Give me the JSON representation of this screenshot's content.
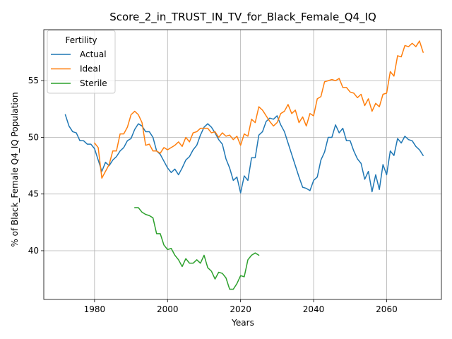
{
  "chart_data": {
    "type": "line",
    "title": "Score_2_in_TRUST_IN_TV_for_Black_Female_Q4_IQ",
    "xlabel": "Years",
    "ylabel": "% of Black_Female Q4_IQ Population",
    "xlim": [
      1966.1,
      2075.0
    ],
    "ylim": [
      35.7,
      59.5
    ],
    "x_ticks": [
      1980,
      2000,
      2020,
      2040,
      2060
    ],
    "y_ticks": [
      40,
      45,
      50,
      55
    ],
    "grid": true,
    "legend": {
      "title": "Fertility",
      "placement": "upper-left"
    },
    "series": [
      {
        "name": "Actual",
        "color": "#1f77b4",
        "x": [
          1972,
          1973,
          1974,
          1975,
          1976,
          1977,
          1978,
          1979,
          1980,
          1981,
          1982,
          1983,
          1984,
          1985,
          1986,
          1987,
          1988,
          1989,
          1990,
          1991,
          1992,
          1993,
          1994,
          1995,
          1996,
          1997,
          1998,
          1999,
          2000,
          2001,
          2002,
          2003,
          2004,
          2005,
          2006,
          2007,
          2008,
          2009,
          2010,
          2011,
          2012,
          2013,
          2014,
          2015,
          2016,
          2017,
          2018,
          2019,
          2020,
          2021,
          2022,
          2023,
          2024,
          2025,
          2026,
          2027,
          2028,
          2029,
          2030,
          2031,
          2032,
          2033,
          2034,
          2035,
          2036,
          2037,
          2038,
          2039,
          2040,
          2041,
          2042,
          2043,
          2044,
          2045,
          2046,
          2047,
          2048,
          2049,
          2050,
          2051,
          2052,
          2053,
          2054,
          2055,
          2056,
          2057,
          2058,
          2059,
          2060,
          2061,
          2062,
          2063,
          2064,
          2065,
          2066,
          2067,
          2068,
          2069,
          2070
        ],
        "values": [
          52.0,
          51.0,
          50.5,
          50.4,
          49.7,
          49.7,
          49.4,
          49.4,
          49.0,
          48.0,
          47.0,
          47.8,
          47.5,
          48.0,
          48.3,
          48.8,
          49.1,
          49.7,
          49.9,
          50.7,
          51.2,
          51.0,
          50.5,
          50.5,
          50.0,
          48.8,
          48.5,
          47.9,
          47.3,
          46.9,
          47.2,
          46.7,
          47.3,
          48.0,
          48.3,
          48.9,
          49.3,
          50.2,
          50.9,
          51.2,
          50.9,
          50.4,
          49.8,
          49.4,
          48.1,
          47.3,
          46.2,
          46.5,
          45.1,
          46.6,
          46.2,
          48.2,
          48.2,
          50.2,
          50.5,
          51.4,
          51.7,
          51.6,
          51.9,
          51.1,
          50.5,
          49.5,
          48.5,
          47.5,
          46.5,
          45.6,
          45.5,
          45.3,
          46.2,
          46.5,
          48.0,
          48.7,
          50.0,
          50.0,
          51.1,
          50.4,
          50.8,
          49.7,
          49.7,
          48.8,
          48.1,
          47.7,
          46.3,
          47.0,
          45.2,
          46.7,
          45.4,
          47.6,
          46.7,
          48.8,
          48.4,
          49.9,
          49.5,
          50.1,
          49.8,
          49.7,
          49.2,
          48.9,
          48.4
        ]
      },
      {
        "name": "Ideal",
        "color": "#ff7f0e",
        "x": [
          1980,
          1981,
          1982,
          1983,
          1984,
          1985,
          1986,
          1987,
          1988,
          1989,
          1990,
          1991,
          1992,
          1993,
          1994,
          1995,
          1996,
          1997,
          1998,
          1999,
          2000,
          2001,
          2002,
          2003,
          2004,
          2005,
          2006,
          2007,
          2008,
          2009,
          2010,
          2011,
          2012,
          2013,
          2014,
          2015,
          2016,
          2017,
          2018,
          2019,
          2020,
          2021,
          2022,
          2023,
          2024,
          2025,
          2026,
          2027,
          2028,
          2029,
          2030,
          2031,
          2032,
          2033,
          2034,
          2035,
          2036,
          2037,
          2038,
          2039,
          2040,
          2041,
          2042,
          2043,
          2044,
          2045,
          2046,
          2047,
          2048,
          2049,
          2050,
          2051,
          2052,
          2053,
          2054,
          2055,
          2056,
          2057,
          2058,
          2059,
          2060,
          2061,
          2062,
          2063,
          2064,
          2065,
          2066,
          2067,
          2068,
          2069,
          2070
        ],
        "values": [
          49.5,
          49.1,
          46.4,
          47.0,
          47.6,
          48.8,
          48.8,
          50.3,
          50.3,
          50.9,
          52.0,
          52.3,
          52.0,
          51.3,
          49.3,
          49.4,
          48.8,
          48.8,
          48.6,
          49.1,
          48.9,
          49.1,
          49.3,
          49.6,
          49.2,
          50.0,
          49.6,
          50.4,
          50.5,
          50.8,
          50.8,
          50.8,
          50.4,
          50.5,
          50.0,
          50.4,
          50.1,
          50.2,
          49.8,
          50.1,
          49.3,
          50.3,
          50.1,
          51.6,
          51.3,
          52.7,
          52.4,
          51.9,
          51.4,
          51.0,
          51.3,
          52.1,
          52.3,
          52.9,
          52.1,
          52.4,
          51.3,
          51.8,
          51.0,
          52.1,
          51.9,
          53.4,
          53.6,
          54.9,
          55.0,
          55.1,
          55.0,
          55.2,
          54.4,
          54.4,
          54.0,
          53.9,
          53.5,
          53.8,
          52.8,
          53.4,
          52.3,
          53.0,
          52.7,
          53.8,
          53.9,
          55.8,
          55.4,
          57.2,
          57.1,
          58.1,
          58.0,
          58.3,
          58.0,
          58.5,
          57.5
        ]
      },
      {
        "name": "Sterile",
        "color": "#2ca02c",
        "x": [
          1991,
          1992,
          1993,
          1994,
          1995,
          1996,
          1997,
          1998,
          1999,
          2000,
          2001,
          2002,
          2003,
          2004,
          2005,
          2006,
          2007,
          2008,
          2009,
          2010,
          2011,
          2012,
          2013,
          2014,
          2015,
          2016,
          2017,
          2018,
          2019,
          2020,
          2021,
          2022,
          2023,
          2024,
          2025
        ],
        "values": [
          43.8,
          43.8,
          43.4,
          43.2,
          43.1,
          42.9,
          41.5,
          41.5,
          40.5,
          40.1,
          40.2,
          39.6,
          39.2,
          38.6,
          39.3,
          38.9,
          38.9,
          39.2,
          38.9,
          39.6,
          38.5,
          38.2,
          37.5,
          38.1,
          38.0,
          37.6,
          36.6,
          36.6,
          37.1,
          37.8,
          37.7,
          39.2,
          39.6,
          39.8,
          39.6
        ]
      }
    ]
  }
}
